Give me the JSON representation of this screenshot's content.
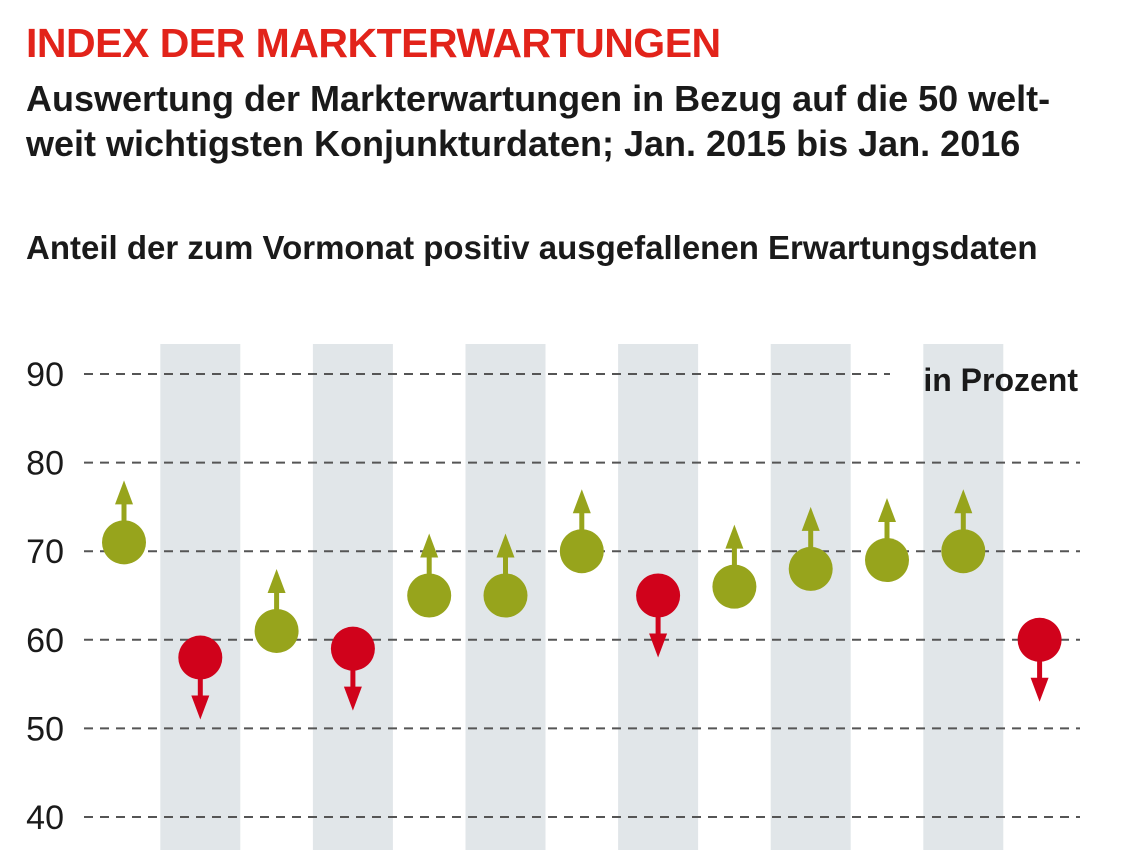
{
  "header": {
    "title": "INDEX DER MARKTERWARTUNGEN",
    "subtitle_line1": "Auswertung der Markterwartungen in Bezug auf die 50 welt-",
    "subtitle_line2": "weit wichtigsten Konjunkturdaten; Jan. 2015 bis Jan. 2016"
  },
  "chart_data": {
    "type": "scatter",
    "title": "Anteil der zum Vormonat positiv ausgefallenen Erwartungsdaten",
    "unit_label": "in Prozent",
    "ylim": [
      40,
      90
    ],
    "yticks": [
      40,
      50,
      60,
      70,
      80,
      90
    ],
    "grid": true,
    "values": [
      71,
      58,
      61,
      59,
      65,
      65,
      70,
      65,
      66,
      68,
      69,
      70,
      60
    ],
    "direction": [
      "up",
      "down",
      "up",
      "down",
      "up",
      "up",
      "up",
      "down",
      "up",
      "up",
      "up",
      "up",
      "down"
    ],
    "colors": {
      "up": "#97a41c",
      "down": "#d0021b",
      "band": "#e1e6e9",
      "grid": "#555555"
    }
  }
}
